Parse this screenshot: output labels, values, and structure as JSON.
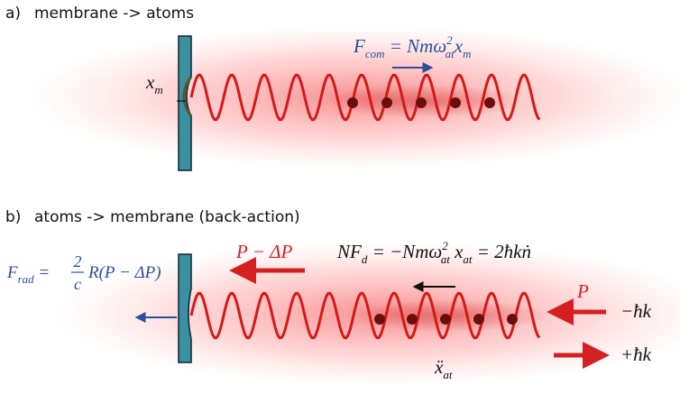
{
  "panel_a": {
    "label": "a)",
    "title": "membrane -> atoms",
    "force": [
      "F",
      "com",
      " = ",
      "Nmω",
      "2",
      "at",
      "x",
      "m"
    ],
    "displacement": [
      "x",
      "m"
    ]
  },
  "panel_b": {
    "label": "b)",
    "title": "atoms -> membrane (back-action)",
    "radiation_force": [
      "F",
      "rad",
      " = ",
      "2",
      "c",
      "R(P − ΔP)"
    ],
    "reflected_power": "P − ΔP",
    "dipole_force": [
      "NF",
      "d",
      " = −Nmω",
      "2",
      "at",
      " x",
      "at",
      " = 2ħk",
      "ṅ"
    ],
    "incident_power": "P",
    "minus_momentum": "−ħk",
    "plus_momentum": "+ħk",
    "acceleration": [
      "ẍ",
      "at"
    ]
  }
}
